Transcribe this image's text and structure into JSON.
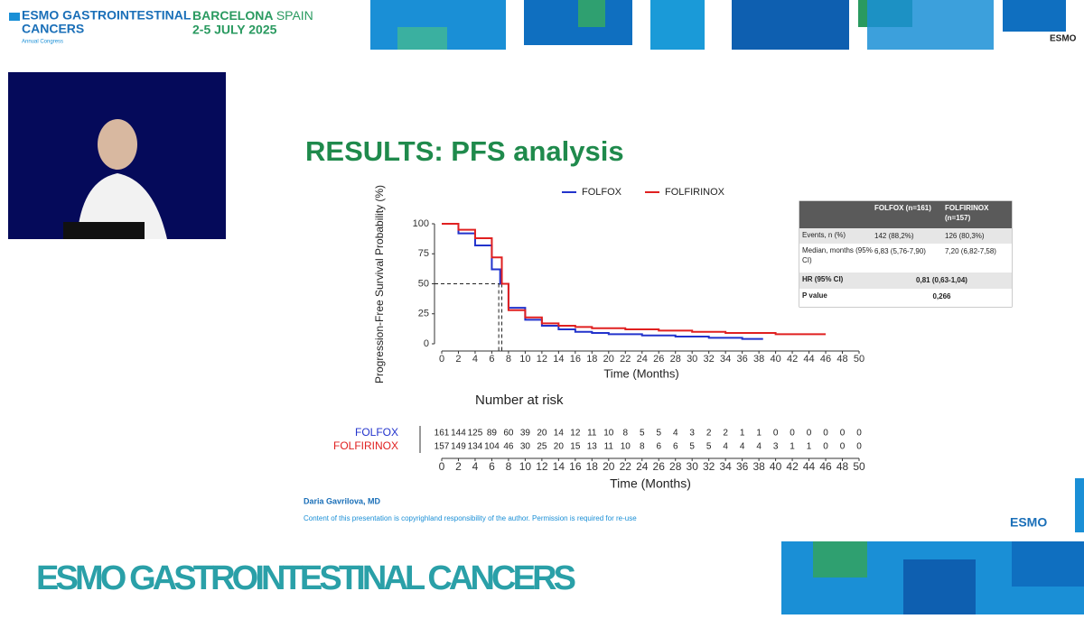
{
  "header": {
    "congress_line1": "ESMO GASTROINTESTINAL",
    "congress_line2": "CANCERS",
    "congress_sub": "Annual Congress",
    "city": "BARCELONA",
    "country": "SPAIN",
    "dates": "2-5 JULY 2025",
    "logo": "ESMO"
  },
  "slide_title": "RESULTS: PFS analysis",
  "chart_data": {
    "type": "line",
    "step": true,
    "xlabel": "Time (Months)",
    "ylabel": "Progression-Free Survival Probability (%)",
    "xlim": [
      0,
      50
    ],
    "xticks": [
      0,
      2,
      4,
      6,
      8,
      10,
      12,
      14,
      16,
      18,
      20,
      22,
      24,
      26,
      28,
      30,
      32,
      34,
      36,
      38,
      40,
      42,
      44,
      46,
      48,
      50
    ],
    "ylim": [
      0,
      100
    ],
    "yticks": [
      0,
      25,
      50,
      75,
      100
    ],
    "reference_y": 50,
    "medians": [
      6.83,
      7.2
    ],
    "series": [
      {
        "name": "FOLFOX",
        "color": "#2233cc",
        "x": [
          0,
          2,
          4,
          6,
          7,
          8,
          10,
          12,
          14,
          16,
          18,
          20,
          24,
          28,
          32,
          36,
          38.5
        ],
        "values": [
          100,
          92,
          82,
          62,
          50,
          30,
          20,
          15,
          12,
          10,
          9,
          8,
          7,
          6,
          5,
          4,
          4
        ]
      },
      {
        "name": "FOLFIRINOX",
        "color": "#e02020",
        "x": [
          0,
          2,
          4,
          6,
          7.2,
          8,
          10,
          12,
          14,
          16,
          18,
          22,
          26,
          30,
          34,
          38,
          40,
          46
        ],
        "values": [
          100,
          95,
          88,
          72,
          50,
          28,
          22,
          17,
          15,
          14,
          13,
          12,
          11,
          10,
          9,
          9,
          8,
          8
        ]
      }
    ],
    "legend": "top"
  },
  "risk_table": {
    "title": "Number at risk",
    "rows": [
      {
        "name": "FOLFOX",
        "color": "#2233cc",
        "values": [
          "161",
          "144",
          "125",
          "89",
          "60",
          "39",
          "20",
          "14",
          "12",
          "11",
          "10",
          "8",
          "5",
          "5",
          "4",
          "3",
          "2",
          "2",
          "1",
          "1",
          "0",
          "0",
          "0",
          "0",
          "0",
          "0"
        ]
      },
      {
        "name": "FOLFIRINOX",
        "color": "#e02020",
        "values": [
          "157",
          "149",
          "134",
          "104",
          "46",
          "30",
          "25",
          "20",
          "15",
          "13",
          "11",
          "10",
          "8",
          "6",
          "6",
          "5",
          "5",
          "4",
          "4",
          "4",
          "3",
          "1",
          "1",
          "0",
          "0",
          "0"
        ]
      }
    ]
  },
  "stats_table": {
    "columns": [
      "FOLFOX (n=161)",
      "FOLFIRINOX (n=157)"
    ],
    "rows": [
      {
        "label": "Events, n (%)",
        "cells": [
          "142 (88,2%)",
          "126 (80,3%)"
        ]
      },
      {
        "label": "Median, months (95% CI)",
        "cells": [
          "6,83 (5,76-7,90)",
          "7,20 (6,82-7,58)"
        ]
      },
      {
        "label": "HR (95% CI)",
        "cells": [
          "0,81 (0,63-1,04)"
        ]
      },
      {
        "label": "P value",
        "cells": [
          "0,266"
        ]
      }
    ]
  },
  "author": "Daria Gavrilova, MD",
  "copyright": "Content of this presentation is copyrighland responsibility of the author. Permission is required for re-use",
  "banner": "ESMO GASTROINTESTINAL CANCERS"
}
